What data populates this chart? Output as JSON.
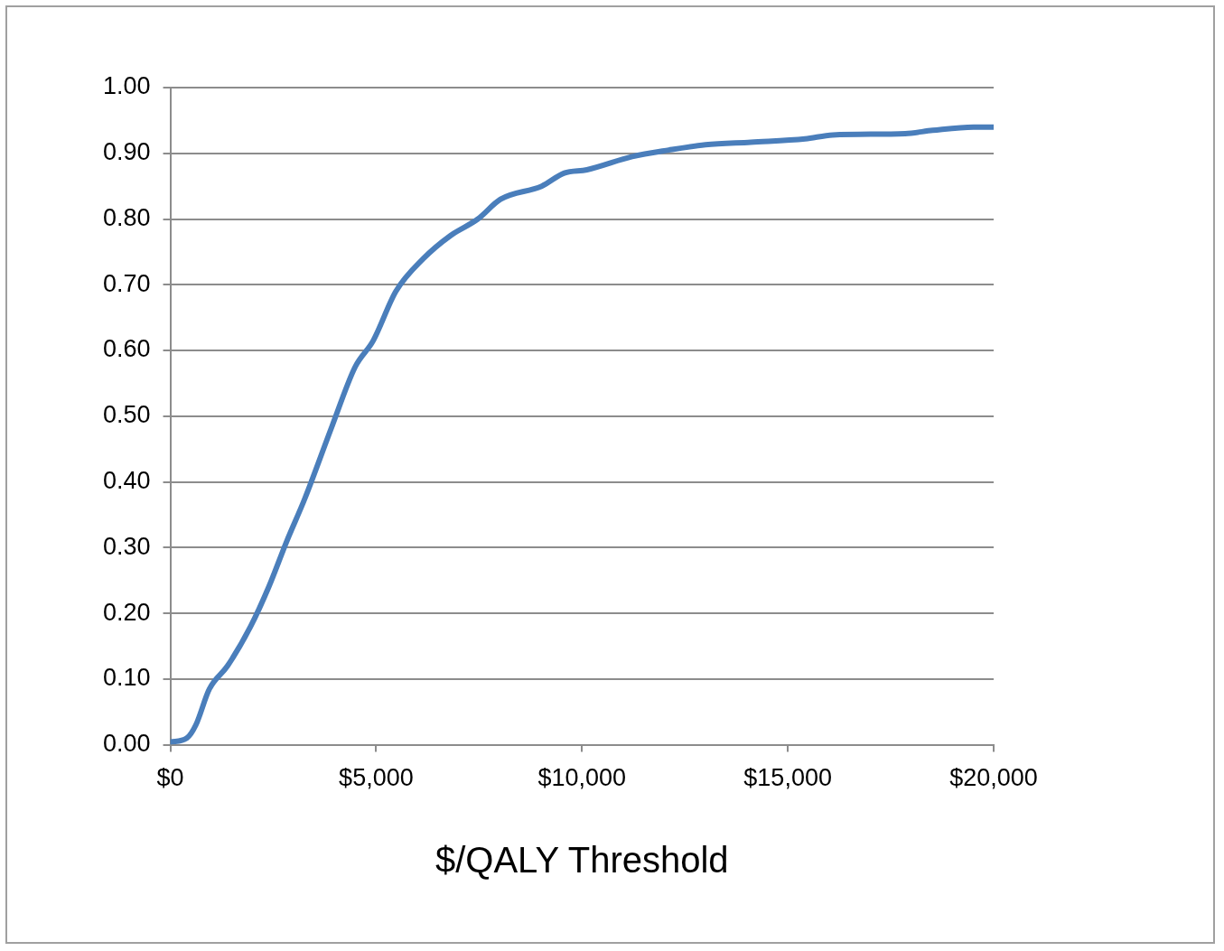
{
  "chart_data": {
    "type": "line",
    "xlabel": "$/QALY Threshold",
    "x": [
      0,
      400,
      620,
      950,
      1390,
      1950,
      2390,
      2830,
      3270,
      3930,
      4490,
      4930,
      5480,
      6150,
      6810,
      7470,
      8020,
      9020,
      9570,
      10120,
      11220,
      12110,
      13000,
      14100,
      15420,
      16090,
      17850,
      18520,
      19510,
      20000
    ],
    "series": [
      {
        "color": "#4a7ebb",
        "values": [
          0.004,
          0.01,
          0.03,
          0.085,
          0.12,
          0.18,
          0.24,
          0.31,
          0.375,
          0.485,
          0.575,
          0.615,
          0.69,
          0.74,
          0.775,
          0.8,
          0.83,
          0.85,
          0.87,
          0.875,
          0.895,
          0.905,
          0.913,
          0.917,
          0.922,
          0.928,
          0.93,
          0.935,
          0.94,
          0.94
        ]
      }
    ],
    "xlim": [
      0,
      20000
    ],
    "xticks": [
      {
        "value": 0,
        "label": "$0"
      },
      {
        "value": 5000,
        "label": "$5,000"
      },
      {
        "value": 10000,
        "label": "$10,000"
      },
      {
        "value": 15000,
        "label": "$15,000"
      },
      {
        "value": 20000,
        "label": "$20,000"
      }
    ],
    "ylim": [
      0,
      1
    ],
    "yticks": [
      {
        "value": 0,
        "label": "0.00"
      },
      {
        "value": 0.1,
        "label": "0.10"
      },
      {
        "value": 0.2,
        "label": "0.20"
      },
      {
        "value": 0.3,
        "label": "0.30"
      },
      {
        "value": 0.4,
        "label": "0.40"
      },
      {
        "value": 0.5,
        "label": "0.50"
      },
      {
        "value": 0.6,
        "label": "0.60"
      },
      {
        "value": 0.7,
        "label": "0.70"
      },
      {
        "value": 0.8,
        "label": "0.80"
      },
      {
        "value": 0.9,
        "label": "0.90"
      },
      {
        "value": 1,
        "label": "1.00"
      }
    ],
    "grid": "y",
    "legend": false,
    "marker": "none",
    "line_style": "solid"
  }
}
